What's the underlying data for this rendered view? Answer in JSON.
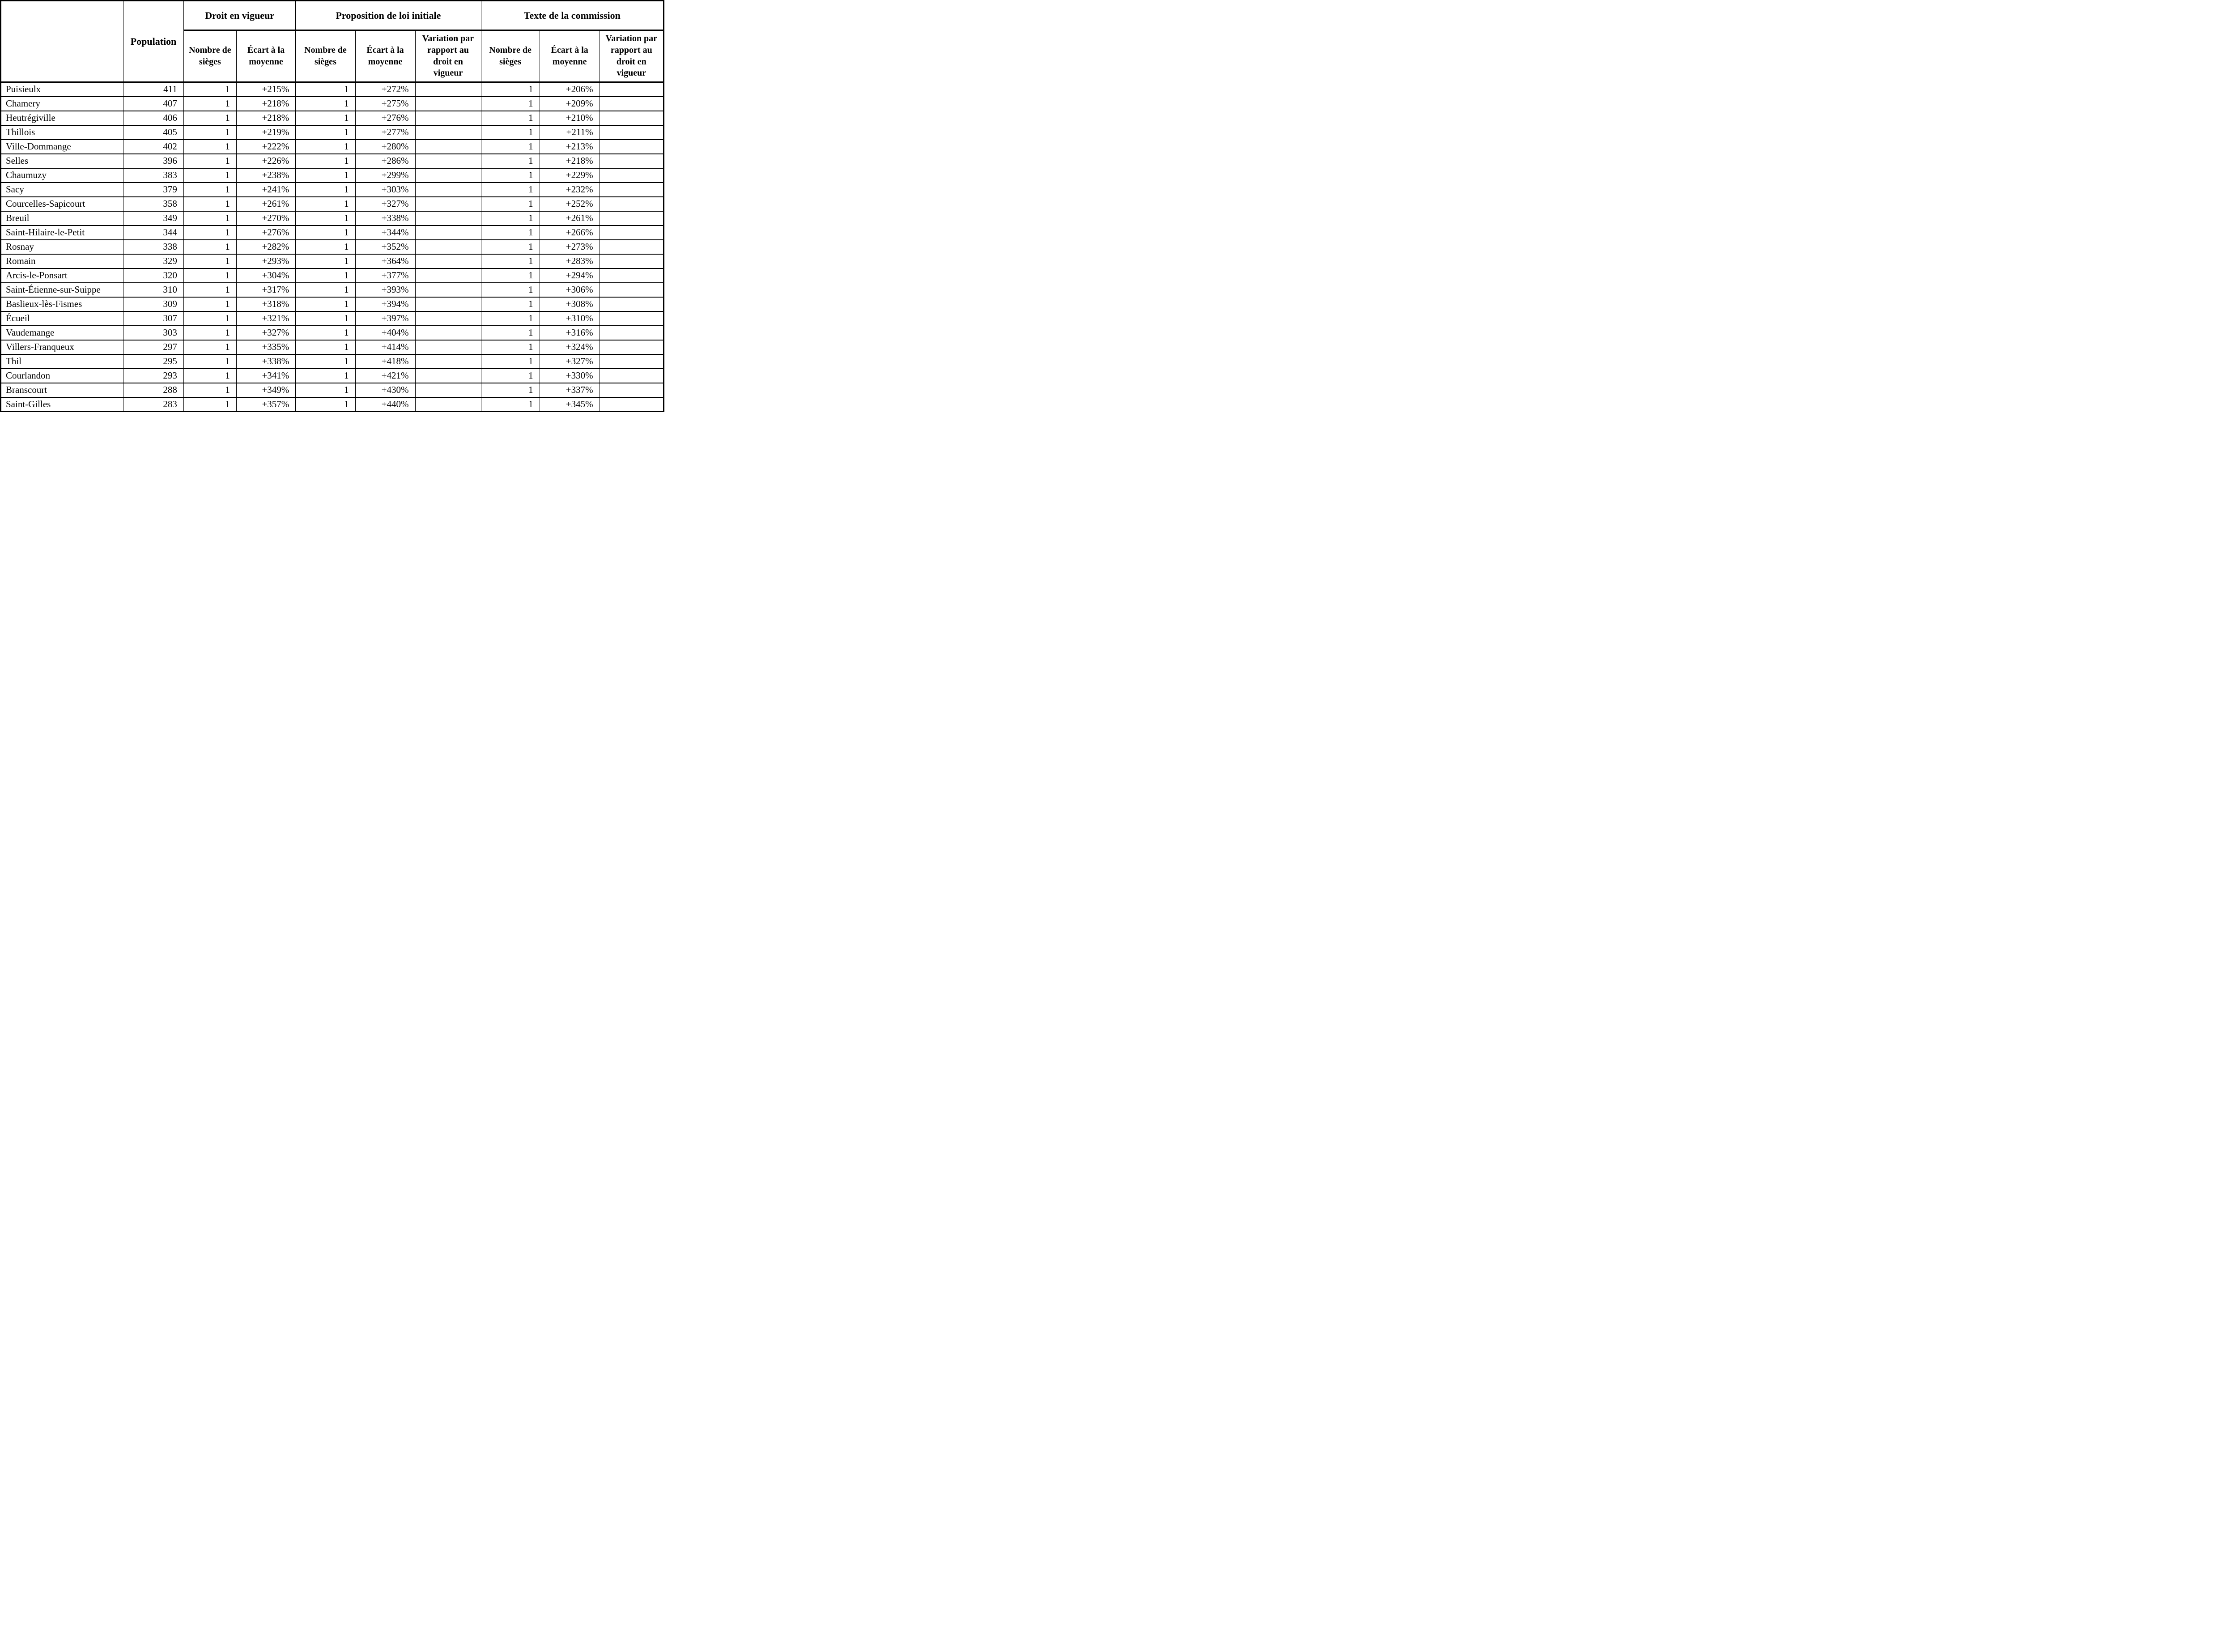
{
  "table": {
    "corner_label": "",
    "population_label": "Population",
    "groups": [
      {
        "label": "Droit en vigueur",
        "columns": [
          "Nombre de sièges",
          "Écart à la moyenne"
        ]
      },
      {
        "label": "Proposition de loi initiale",
        "columns": [
          "Nombre de sièges",
          "Écart à la moyenne",
          "Variation par rapport au droit en vigueur"
        ]
      },
      {
        "label": "Texte de la commission",
        "columns": [
          "Nombre de sièges",
          "Écart à la moyenne",
          "Variation par rapport au droit en vigueur"
        ]
      }
    ],
    "rows": [
      [
        "Puisieulx",
        "411",
        "1",
        "+215%",
        "1",
        "+272%",
        "",
        "1",
        "+206%",
        ""
      ],
      [
        "Chamery",
        "407",
        "1",
        "+218%",
        "1",
        "+275%",
        "",
        "1",
        "+209%",
        ""
      ],
      [
        "Heutrégiville",
        "406",
        "1",
        "+218%",
        "1",
        "+276%",
        "",
        "1",
        "+210%",
        ""
      ],
      [
        "Thillois",
        "405",
        "1",
        "+219%",
        "1",
        "+277%",
        "",
        "1",
        "+211%",
        ""
      ],
      [
        "Ville-Dommange",
        "402",
        "1",
        "+222%",
        "1",
        "+280%",
        "",
        "1",
        "+213%",
        ""
      ],
      [
        "Selles",
        "396",
        "1",
        "+226%",
        "1",
        "+286%",
        "",
        "1",
        "+218%",
        ""
      ],
      [
        "Chaumuzy",
        "383",
        "1",
        "+238%",
        "1",
        "+299%",
        "",
        "1",
        "+229%",
        ""
      ],
      [
        "Sacy",
        "379",
        "1",
        "+241%",
        "1",
        "+303%",
        "",
        "1",
        "+232%",
        ""
      ],
      [
        "Courcelles-Sapicourt",
        "358",
        "1",
        "+261%",
        "1",
        "+327%",
        "",
        "1",
        "+252%",
        ""
      ],
      [
        "Breuil",
        "349",
        "1",
        "+270%",
        "1",
        "+338%",
        "",
        "1",
        "+261%",
        ""
      ],
      [
        "Saint-Hilaire-le-Petit",
        "344",
        "1",
        "+276%",
        "1",
        "+344%",
        "",
        "1",
        "+266%",
        ""
      ],
      [
        "Rosnay",
        "338",
        "1",
        "+282%",
        "1",
        "+352%",
        "",
        "1",
        "+273%",
        ""
      ],
      [
        "Romain",
        "329",
        "1",
        "+293%",
        "1",
        "+364%",
        "",
        "1",
        "+283%",
        ""
      ],
      [
        "Arcis-le-Ponsart",
        "320",
        "1",
        "+304%",
        "1",
        "+377%",
        "",
        "1",
        "+294%",
        ""
      ],
      [
        "Saint-Étienne-sur-Suippe",
        "310",
        "1",
        "+317%",
        "1",
        "+393%",
        "",
        "1",
        "+306%",
        ""
      ],
      [
        "Baslieux-lès-Fismes",
        "309",
        "1",
        "+318%",
        "1",
        "+394%",
        "",
        "1",
        "+308%",
        ""
      ],
      [
        "Écueil",
        "307",
        "1",
        "+321%",
        "1",
        "+397%",
        "",
        "1",
        "+310%",
        ""
      ],
      [
        "Vaudemange",
        "303",
        "1",
        "+327%",
        "1",
        "+404%",
        "",
        "1",
        "+316%",
        ""
      ],
      [
        "Villers-Franqueux",
        "297",
        "1",
        "+335%",
        "1",
        "+414%",
        "",
        "1",
        "+324%",
        ""
      ],
      [
        "Thil",
        "295",
        "1",
        "+338%",
        "1",
        "+418%",
        "",
        "1",
        "+327%",
        ""
      ],
      [
        "Courlandon",
        "293",
        "1",
        "+341%",
        "1",
        "+421%",
        "",
        "1",
        "+330%",
        ""
      ],
      [
        "Branscourt",
        "288",
        "1",
        "+349%",
        "1",
        "+430%",
        "",
        "1",
        "+337%",
        ""
      ],
      [
        "Saint-Gilles",
        "283",
        "1",
        "+357%",
        "1",
        "+440%",
        "",
        "1",
        "+345%",
        ""
      ]
    ]
  }
}
